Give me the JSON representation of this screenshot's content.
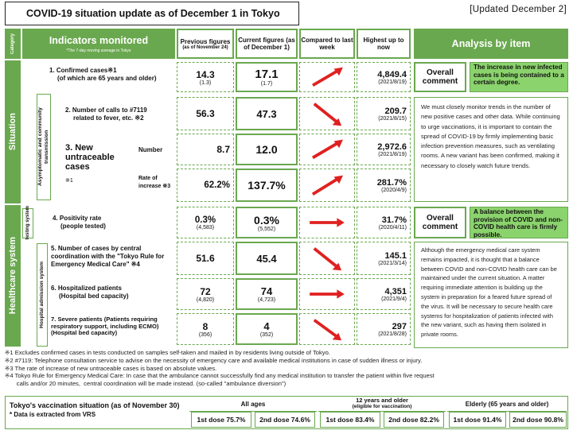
{
  "title": "COVID-19 situation update as of December 1 in Tokyo",
  "updated": "[Updated December 2]",
  "headers": {
    "category": "Category",
    "indicators": "Indicators monitored",
    "indicators_note": "*The 7-day moving average in Tokyo",
    "previous": "Previous figures",
    "previous_sub": "(as of November 24)",
    "current": "Current figures (as of December 1)",
    "compared": "Compared to last week",
    "highest": "Highest up to now",
    "analysis": "Analysis by item"
  },
  "sections": {
    "situation": "Situation",
    "asymptomatic": "Asymptomatic and community transmission",
    "healthcare": "Healthcare system",
    "testing": "Testing system",
    "hospital": "Hospital admission system"
  },
  "rows": [
    {
      "label": "1. Confirmed cases※1",
      "label2": "(of which are 65 years and older)",
      "prev": "14.3",
      "prev2": "(1.3)",
      "curr": "17.1",
      "curr2": "(1.7)",
      "trend": "up",
      "high": "4,849.4",
      "high_date": "(2021/8/19)"
    },
    {
      "label": "2. Number of calls to #7119",
      "label2": "related to fever, etc. ※2",
      "prev": "56.3",
      "prev2": "",
      "curr": "47.3",
      "curr2": "",
      "trend": "down",
      "high": "209.7",
      "high_date": "(2021/8/15)"
    },
    {
      "label": "Number",
      "prev": "8.7",
      "curr": "12.0",
      "trend": "up",
      "high": "2,972.6",
      "high_date": "(2021/8/19)"
    },
    {
      "label": "Rate of increase ※3",
      "prev": "62.2%",
      "curr": "137.7%",
      "trend": "up",
      "high": "281.7%",
      "high_date": "(2020/4/9)"
    },
    {
      "label": "4. Positivity rate",
      "label2": "(people tested)",
      "prev": "0.3%",
      "prev2": "(4,583)",
      "curr": "0.3%",
      "curr2": "(5,552)",
      "trend": "flat",
      "high": "31.7%",
      "high_date": "(2020/4/11)"
    },
    {
      "label": "5. Number of cases by central coordination with the \"Tokyo Rule for Emergency Medical Care\" ※4",
      "prev": "51.6",
      "curr": "45.4",
      "trend": "down",
      "high": "145.1",
      "high_date": "(2021/3/14)"
    },
    {
      "label": "6. Hospitalized patients",
      "label2": "(Hospital bed capacity)",
      "prev": "72",
      "prev2": "(4,820)",
      "curr": "74",
      "curr2": "(4,723)",
      "trend": "flat",
      "high": "4,351",
      "high_date": "(2021/9/4)"
    },
    {
      "label": "7. Severe patients (Patients requiring respiratory support, including ECMO)",
      "label2": "(Hospital bed capacity)",
      "prev": "8",
      "prev2": "(356)",
      "curr": "4",
      "curr2": "(352)",
      "trend": "down",
      "high": "297",
      "high_date": "(2021/8/28)"
    }
  ],
  "new_untraceable": "3. New untraceable cases",
  "new_untraceable_note": "※1",
  "analysis": {
    "overall_label": "Overall comment",
    "situation_comment": "The increase in new infected cases is being contained to a certain degree.",
    "situation_text": "We must closely monitor trends in the number of new positive cases and other data. While continuing to urge vaccinations, it is important to contain the spread of COVID-19 by firmly implementing basic infection prevention measures, such as ventilating rooms. A new variant has been confirmed, making it necessary to closely watch future trends.",
    "healthcare_comment": "A balance between the provision of COVID and non-COVID health care is firmly possible.",
    "healthcare_text": "Although the emergency medical care system remains impacted, it is thought that a balance between COVID and non-COVID health care can be maintained under the current situation. A matter requiring immediate attention is building up the system in preparation for a feared future spread of the virus. It will be necessary to secure health care systems for hospitalization of patients infected with the new variant, such as having them isolated in private rooms."
  },
  "notes": [
    "※1   Excludes confirmed cases in tests conducted on samples self-taken and mailed in by residents living outside of Tokyo.",
    "※2   #7119: Telephone consultation service to advise on the necessity of emergency care and available medical institutions in case of sudden illness or injury.",
    "※3   The rate of increase of new untraceable cases is based on absolute values.",
    "※4   Tokyo Rule for Emergency Medical Care: In case that the ambulance cannot successfully find any medical institution to transfer the patient within five request",
    "       calls and/or 20 minutes,  central coordination will be made instead. (so-called \"ambulance diversion\")"
  ],
  "vaccination": {
    "title": "Tokyo's vaccination situation (as of November 30)",
    "note": "* Data is extracted from VRS",
    "groups": [
      {
        "name": "All ages",
        "sub": "",
        "first": "1st dose 75.7%",
        "second": "2nd dose 74.6%"
      },
      {
        "name": "12 years and older",
        "sub": "(eligible for vaccination)",
        "first": "1st dose 83.4%",
        "second": "2nd dose 82.2%"
      },
      {
        "name": "Elderly (65 years and older)",
        "sub": "",
        "first": "1st dose 91.4%",
        "second": "2nd dose 90.8%"
      }
    ]
  },
  "colors": {
    "accent": "#6aa84f",
    "comment_bg": "#8bd36d",
    "arrow": "#e02020"
  }
}
